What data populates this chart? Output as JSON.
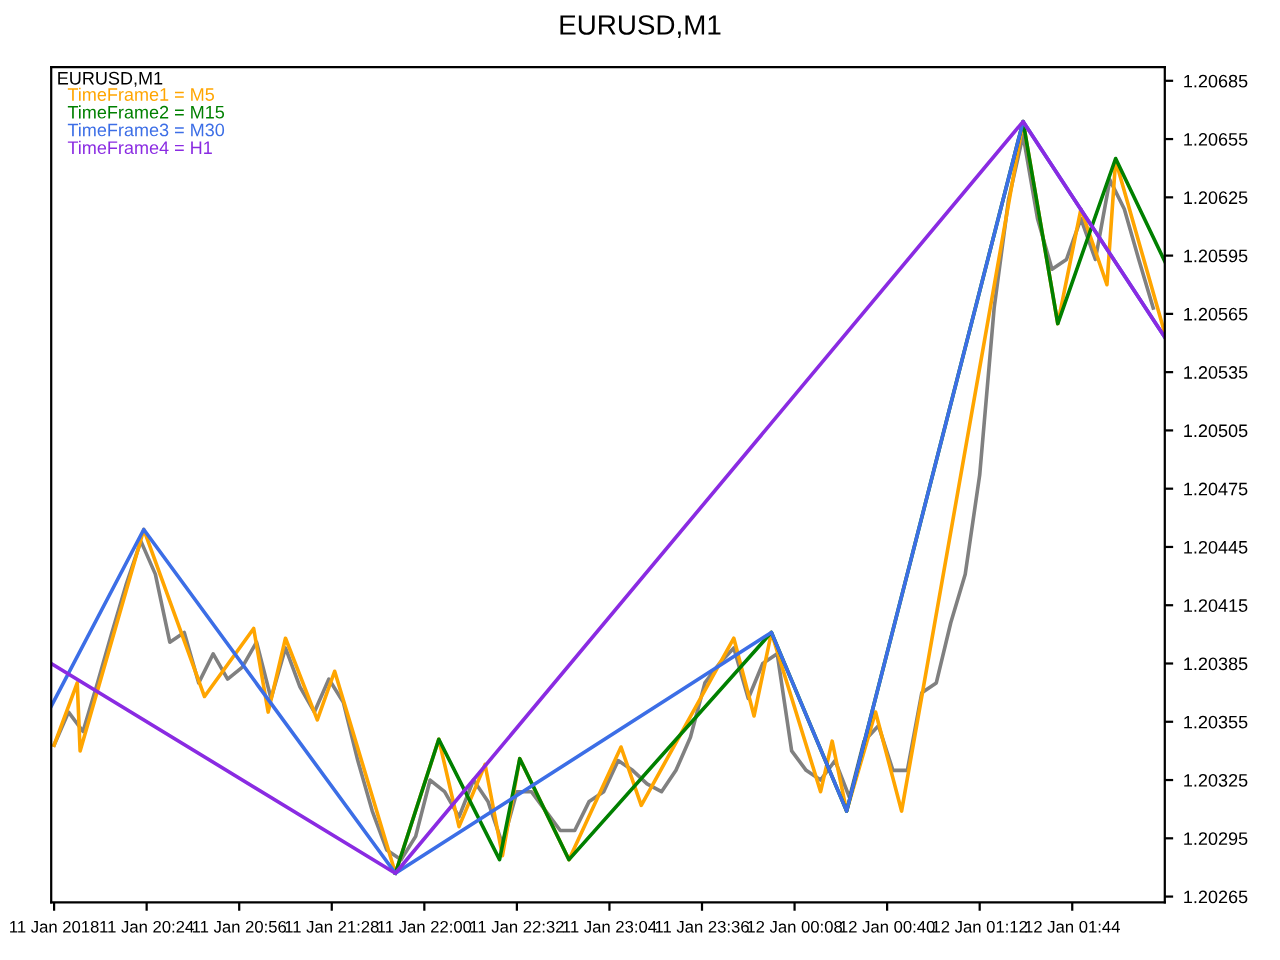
{
  "chart_data": {
    "type": "line",
    "title": "EURUSD,M1",
    "annotations": [
      "EURUSD,M1"
    ],
    "xlim": [
      "2018-01-11T19:51",
      "2018-01-12T02:16"
    ],
    "xticks": [
      {
        "value": "2018-01-11T19:52",
        "label": "11 Jan 2018"
      },
      {
        "value": "2018-01-11T20:24",
        "label": "11 Jan 20:24"
      },
      {
        "value": "2018-01-11T20:56",
        "label": "11 Jan 20:56"
      },
      {
        "value": "2018-01-11T21:28",
        "label": "11 Jan 21:28"
      },
      {
        "value": "2018-01-11T22:00",
        "label": "11 Jan 22:00"
      },
      {
        "value": "2018-01-11T22:32",
        "label": "11 Jan 22:32"
      },
      {
        "value": "2018-01-11T23:04",
        "label": "11 Jan 23:04"
      },
      {
        "value": "2018-01-11T23:36",
        "label": "11 Jan 23:36"
      },
      {
        "value": "2018-01-12T00:08",
        "label": "12 Jan 00:08"
      },
      {
        "value": "2018-01-12T00:40",
        "label": "12 Jan 00:40"
      },
      {
        "value": "2018-01-12T01:12",
        "label": "12 Jan 01:12"
      },
      {
        "value": "2018-01-12T01:44",
        "label": "12 Jan 01:44"
      }
    ],
    "ylim": [
      1.20262,
      1.20692
    ],
    "yticks": [
      {
        "value": 1.20265,
        "label": "1.20265"
      },
      {
        "value": 1.20295,
        "label": "1.20295"
      },
      {
        "value": 1.20325,
        "label": "1.20325"
      },
      {
        "value": 1.20355,
        "label": "1.20355"
      },
      {
        "value": 1.20385,
        "label": "1.20385"
      },
      {
        "value": 1.20415,
        "label": "1.20415"
      },
      {
        "value": 1.20445,
        "label": "1.20445"
      },
      {
        "value": 1.20475,
        "label": "1.20475"
      },
      {
        "value": 1.20505,
        "label": "1.20505"
      },
      {
        "value": 1.20535,
        "label": "1.20535"
      },
      {
        "value": 1.20565,
        "label": "1.20565"
      },
      {
        "value": 1.20595,
        "label": "1.20595"
      },
      {
        "value": 1.20625,
        "label": "1.20625"
      },
      {
        "value": 1.20655,
        "label": "1.20655"
      },
      {
        "value": 1.20685,
        "label": "1.20685"
      }
    ],
    "grid": false,
    "legend": "top left",
    "marker": "none",
    "line_style": "solid",
    "series": [
      {
        "color": "#808080",
        "x": [
          "2018-01-11T19:52",
          "2018-01-11T19:57",
          "2018-01-11T20:02",
          "2018-01-11T20:07",
          "2018-01-11T20:12",
          "2018-01-11T20:17",
          "2018-01-11T20:22",
          "2018-01-11T20:27",
          "2018-01-11T20:32",
          "2018-01-11T20:37",
          "2018-01-11T20:42",
          "2018-01-11T20:47",
          "2018-01-11T20:52",
          "2018-01-11T20:57",
          "2018-01-11T21:02",
          "2018-01-11T21:07",
          "2018-01-11T21:12",
          "2018-01-11T21:17",
          "2018-01-11T21:22",
          "2018-01-11T21:27",
          "2018-01-11T21:32",
          "2018-01-11T21:37",
          "2018-01-11T21:42",
          "2018-01-11T21:47",
          "2018-01-11T21:52",
          "2018-01-11T21:57",
          "2018-01-11T22:02",
          "2018-01-11T22:07",
          "2018-01-11T22:12",
          "2018-01-11T22:17",
          "2018-01-11T22:22",
          "2018-01-11T22:27",
          "2018-01-11T22:32",
          "2018-01-11T22:37",
          "2018-01-11T22:42",
          "2018-01-11T22:47",
          "2018-01-11T22:52",
          "2018-01-11T22:57",
          "2018-01-11T23:02",
          "2018-01-11T23:07",
          "2018-01-11T23:12",
          "2018-01-11T23:17",
          "2018-01-11T23:22",
          "2018-01-11T23:27",
          "2018-01-11T23:32",
          "2018-01-11T23:37",
          "2018-01-11T23:42",
          "2018-01-11T23:47",
          "2018-01-11T23:52",
          "2018-01-11T23:57",
          "2018-01-12T00:02",
          "2018-01-12T00:07",
          "2018-01-12T00:12",
          "2018-01-12T00:17",
          "2018-01-12T00:22",
          "2018-01-12T00:27",
          "2018-01-12T00:32",
          "2018-01-12T00:37",
          "2018-01-12T00:42",
          "2018-01-12T00:47",
          "2018-01-12T00:52",
          "2018-01-12T00:57",
          "2018-01-12T01:02",
          "2018-01-12T01:07",
          "2018-01-12T01:12",
          "2018-01-12T01:17",
          "2018-01-12T01:22",
          "2018-01-12T01:27",
          "2018-01-12T01:32",
          "2018-01-12T01:37",
          "2018-01-12T01:42",
          "2018-01-12T01:47",
          "2018-01-12T01:52",
          "2018-01-12T01:57",
          "2018-01-12T02:02",
          "2018-01-12T02:07",
          "2018-01-12T02:12"
        ],
        "values": [
          1.20343,
          1.2036,
          1.2035,
          1.20375,
          1.20401,
          1.20426,
          1.20448,
          1.20431,
          1.20396,
          1.20401,
          1.20375,
          1.2039,
          1.20377,
          1.20383,
          1.20396,
          1.20367,
          1.20393,
          1.20373,
          1.2036,
          1.20377,
          1.20365,
          1.20335,
          1.20309,
          1.20289,
          1.20284,
          1.20296,
          1.20325,
          1.20319,
          1.20306,
          1.20325,
          1.20314,
          1.20292,
          1.20319,
          1.20319,
          1.20309,
          1.20299,
          1.20299,
          1.20314,
          1.20319,
          1.20335,
          1.2033,
          1.20323,
          1.20319,
          1.2033,
          1.20347,
          1.20375,
          1.20385,
          1.20393,
          1.20367,
          1.20385,
          1.2039,
          1.2034,
          1.2033,
          1.20325,
          1.20335,
          1.20316,
          1.20345,
          1.20353,
          1.2033,
          1.2033,
          1.2037,
          1.20375,
          1.20406,
          1.20431,
          1.20482,
          1.20568,
          1.20624,
          1.20657,
          1.20614,
          1.20588,
          1.20593,
          1.20614,
          1.20593,
          1.20634,
          1.20619,
          1.20593,
          1.20568
        ]
      },
      {
        "name": "TimeFrame1 = M5",
        "color": "#ffa500",
        "x": [
          "2018-01-11T19:52",
          "2018-01-11T20:00",
          "2018-01-11T20:01",
          "2018-01-11T20:23",
          "2018-01-11T20:44",
          "2018-01-11T21:01",
          "2018-01-11T21:06",
          "2018-01-11T21:12",
          "2018-01-11T21:23",
          "2018-01-11T21:29",
          "2018-01-11T21:50",
          "2018-01-11T22:05",
          "2018-01-11T22:12",
          "2018-01-11T22:21",
          "2018-01-11T22:27",
          "2018-01-11T22:33",
          "2018-01-11T22:50",
          "2018-01-11T23:08",
          "2018-01-11T23:15",
          "2018-01-11T23:47",
          "2018-01-11T23:54",
          "2018-01-12T00:00",
          "2018-01-12T00:17",
          "2018-01-12T00:21",
          "2018-01-12T00:26",
          "2018-01-12T00:36",
          "2018-01-12T00:45",
          "2018-01-12T01:27",
          "2018-01-12T01:39",
          "2018-01-12T01:47",
          "2018-01-12T01:56",
          "2018-01-12T01:59",
          "2018-01-12T02:16"
        ],
        "values": [
          1.20343,
          1.20375,
          1.2034,
          1.20454,
          1.20368,
          1.20403,
          1.2036,
          1.20398,
          1.20356,
          1.20381,
          1.20277,
          1.20346,
          1.20301,
          1.20333,
          1.20286,
          1.20336,
          1.20284,
          1.20342,
          1.20312,
          1.20398,
          1.20358,
          1.20401,
          1.20319,
          1.20345,
          1.20309,
          1.2036,
          1.20309,
          1.20664,
          1.2056,
          1.20619,
          1.2058,
          1.20644,
          1.20555
        ]
      },
      {
        "name": "TimeFrame2 = M15",
        "color": "#008000",
        "x": [
          "2018-01-11T21:50",
          "2018-01-11T22:05",
          "2018-01-11T22:26",
          "2018-01-11T22:33",
          "2018-01-11T22:50",
          "2018-01-12T00:00",
          "2018-01-12T00:26",
          "2018-01-12T01:27",
          "2018-01-12T01:39",
          "2018-01-12T01:59",
          "2018-01-12T02:16"
        ],
        "values": [
          1.20277,
          1.20346,
          1.20284,
          1.20336,
          1.20284,
          1.20401,
          1.20309,
          1.20664,
          1.2056,
          1.20645,
          1.20592
        ]
      },
      {
        "name": "TimeFrame3 = M30",
        "color": "#3c6ee6",
        "x": [
          "2018-01-11T19:51",
          "2018-01-11T20:23",
          "2018-01-11T21:50",
          "2018-01-12T00:00",
          "2018-01-12T00:26",
          "2018-01-12T01:27",
          "2018-01-12T02:16"
        ],
        "values": [
          1.20363,
          1.20454,
          1.20277,
          1.20401,
          1.20309,
          1.20664,
          1.20553
        ]
      },
      {
        "name": "TimeFrame4 = H1",
        "color": "#8a2be2",
        "x": [
          "2018-01-11T19:51",
          "2018-01-11T21:50",
          "2018-01-12T01:27",
          "2018-01-12T02:16"
        ],
        "values": [
          1.20385,
          1.20277,
          1.20664,
          1.20553
        ]
      }
    ]
  }
}
